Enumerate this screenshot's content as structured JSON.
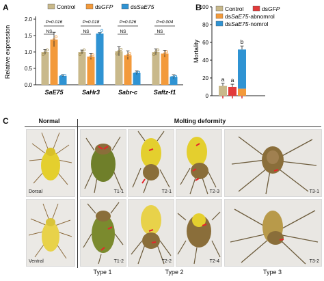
{
  "panels": {
    "a": "A",
    "b": "B",
    "c": "C"
  },
  "chart_data": [
    {
      "type": "bar",
      "ylabel": "Relative expression",
      "ylim": [
        0,
        2.0
      ],
      "yticks": [
        "0.0",
        "0.5",
        "1.0",
        "1.5",
        "2.0"
      ],
      "categories": [
        "SaE75",
        "SaHr3",
        "Sabr-c",
        "Saftz-f1"
      ],
      "category_display": [
        {
          "plain": "",
          "italic": "SaE75"
        },
        {
          "plain": "",
          "italic": "SaHr3"
        },
        {
          "plain": "",
          "italic": "Sabr-c"
        },
        {
          "plain": "",
          "italic": "Saftz-f1"
        }
      ],
      "series": [
        {
          "name": "Control",
          "color": "#c9b98b",
          "values": [
            1.0,
            1.0,
            1.02,
            1.0
          ]
        },
        {
          "name": "dsGFP",
          "color": "#f39a3b",
          "values": [
            1.38,
            0.86,
            0.9,
            0.95
          ]
        },
        {
          "name": "dsSaE75",
          "color": "#2f93d3",
          "values": [
            0.27,
            1.56,
            0.36,
            0.24
          ]
        }
      ],
      "errors": [
        [
          0.07,
          0.22,
          0.04
        ],
        [
          0.06,
          0.09,
          0.03
        ],
        [
          0.14,
          0.13,
          0.06
        ],
        [
          0.09,
          0.1,
          0.06
        ]
      ],
      "legend": [
        {
          "plain": "Control",
          "italic": ""
        },
        {
          "plain": "ds",
          "italic": "GFP"
        },
        {
          "plain": "ds",
          "italic": "SaE75"
        }
      ],
      "annotations": [
        {
          "group": 0,
          "p": "P=0.016",
          "ns": "NS"
        },
        {
          "group": 1,
          "p": "P=0.018",
          "ns": "NS"
        },
        {
          "group": 2,
          "p": "P=0.026",
          "ns": "NS"
        },
        {
          "group": 3,
          "p": "P=0.004",
          "ns": "NS"
        }
      ]
    },
    {
      "type": "bar",
      "ylabel": "Mortality",
      "ylim": [
        0,
        100
      ],
      "yticks": [
        "0",
        "20",
        "40",
        "60",
        "80",
        "100"
      ],
      "bars": [
        {
          "name": "Control",
          "color": "#c9b98b",
          "value": 11,
          "error": 3,
          "letter": "a"
        },
        {
          "name": "dsGFP",
          "color": "#e23a3a",
          "value": 10,
          "error": 3,
          "letter": "a"
        },
        {
          "name": "dsSaE75",
          "stack": [
            {
              "name": "dsSaE75-abnomrol",
              "color": "#f39a3b",
              "value": 8
            },
            {
              "name": "dsSaE75-nomrol",
              "color": "#2f93d3",
              "value": 44
            }
          ],
          "error": 4,
          "letter": "b"
        }
      ],
      "legend": [
        {
          "plain": "Control",
          "italic": "",
          "color": "#c9b98b"
        },
        {
          "plain": "ds",
          "italic": "GFP",
          "color": "#e23a3a"
        },
        {
          "plain": "ds",
          "italic": "SaE75",
          "suffix": "-abnomrol",
          "color": "#f39a3b"
        },
        {
          "plain": "ds",
          "italic": "SaE75",
          "suffix": "-nomrol",
          "color": "#2f93d3"
        }
      ]
    }
  ],
  "panel_c": {
    "header_normal": "Normal",
    "header_deformity": "Molting deformity",
    "normal_labels": {
      "dorsal": "Dorsal",
      "ventral": "Ventral"
    },
    "photo_labels": {
      "t1_1": "T1-1",
      "t1_2": "T1-2",
      "t2_1": "T2-1",
      "t2_2": "T2-2",
      "t2_3": "T2-3",
      "t2_4": "T2-4",
      "t3_1": "T3-1",
      "t3_2": "T3-2"
    },
    "types": {
      "t1": "Type 1",
      "t2": "Type 2",
      "t3": "Type 3"
    },
    "colors": {
      "aphid_yellow": "#e4cf2e",
      "aphid_green": "#7b8a2e",
      "arrow": "#e6252a",
      "photo_bg": "#e8e6e2"
    }
  }
}
